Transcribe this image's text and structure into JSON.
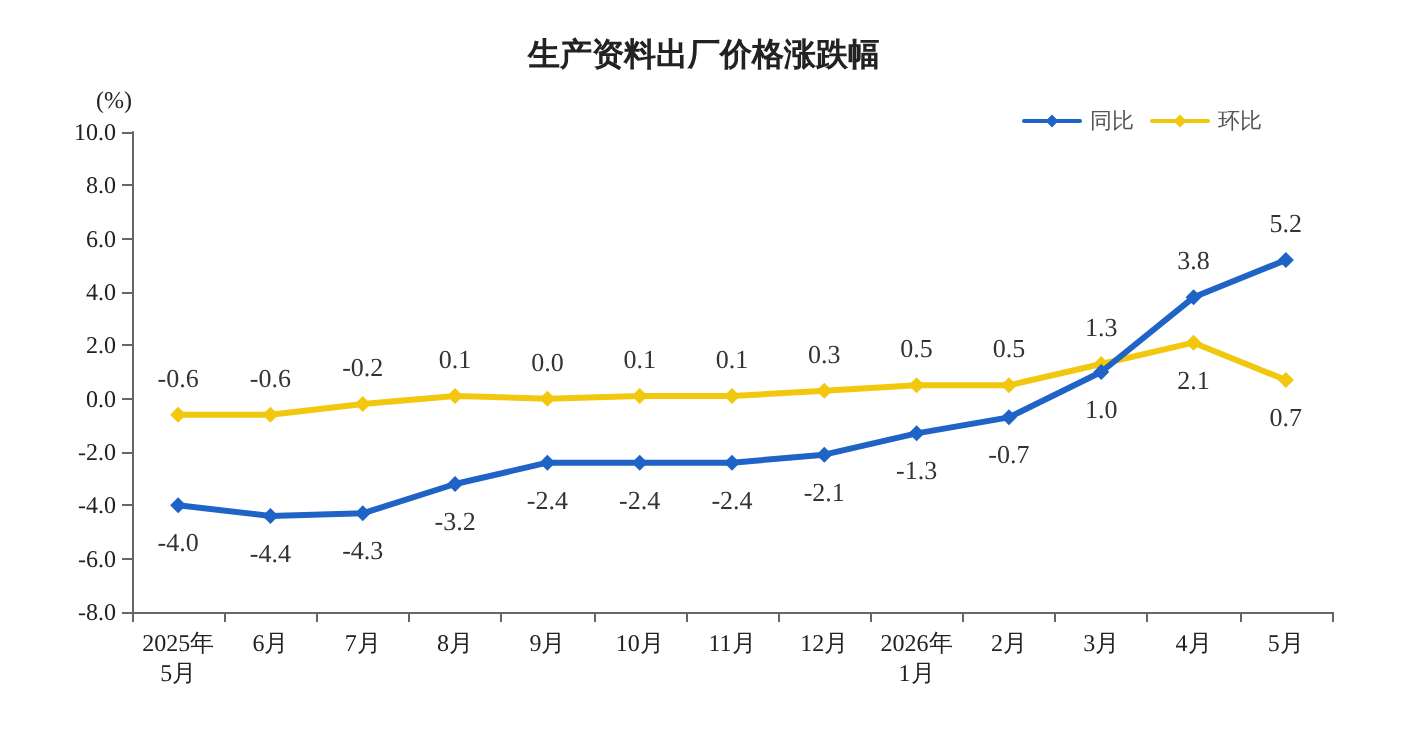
{
  "chart_data": {
    "type": "line",
    "title": "生产资料出厂价格涨跌幅",
    "ylabel": "(%)",
    "categories": [
      "2025年\n5月",
      "6月",
      "7月",
      "8月",
      "9月",
      "10月",
      "11月",
      "12月",
      "2026年\n1月",
      "2月",
      "3月",
      "4月",
      "5月"
    ],
    "series": [
      {
        "name": "同比",
        "color": "#1f63c6",
        "values": [
          -4.0,
          -4.4,
          -4.3,
          -3.2,
          -2.4,
          -2.4,
          -2.4,
          -2.1,
          -1.3,
          -0.7,
          1.0,
          3.8,
          5.2
        ],
        "value_labels": [
          "-4.0",
          "-4.4",
          "-4.3",
          "-3.2",
          "-2.4",
          "-2.4",
          "-2.4",
          "-2.1",
          "-1.3",
          "-0.7",
          "1.0",
          "3.8",
          "5.2"
        ]
      },
      {
        "name": "环比",
        "color": "#f2c80f",
        "values": [
          -0.6,
          -0.6,
          -0.2,
          0.1,
          0.0,
          0.1,
          0.1,
          0.3,
          0.5,
          0.5,
          1.3,
          2.1,
          0.7
        ],
        "value_labels": [
          "-0.6",
          "-0.6",
          "-0.2",
          "0.1",
          "0.0",
          "0.1",
          "0.1",
          "0.3",
          "0.5",
          "0.5",
          "1.3",
          "2.1",
          "0.7"
        ]
      }
    ],
    "ylim": [
      -8,
      10
    ],
    "yticks": [
      {
        "value": -8,
        "label": "-8.0"
      },
      {
        "value": -6,
        "label": "-6.0"
      },
      {
        "value": -4,
        "label": "-4.0"
      },
      {
        "value": -2,
        "label": "-2.0"
      },
      {
        "value": 0,
        "label": "0.0"
      },
      {
        "value": 2,
        "label": "2.0"
      },
      {
        "value": 4,
        "label": "4.0"
      },
      {
        "value": 6,
        "label": "6.0"
      },
      {
        "value": 8,
        "label": "8.0"
      },
      {
        "value": 10,
        "label": "10.0"
      }
    ],
    "grid": false,
    "legend": "top right",
    "marker": "diamond",
    "line_style": "solid"
  }
}
